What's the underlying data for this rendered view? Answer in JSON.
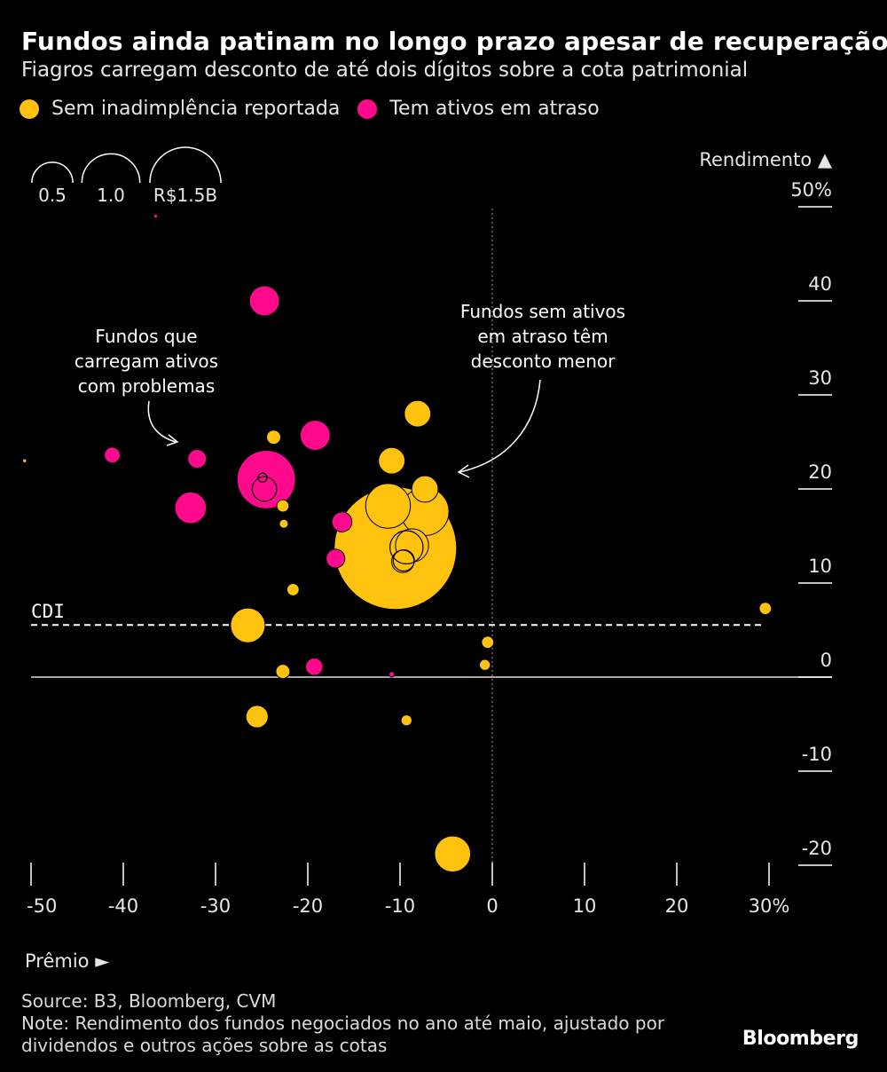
{
  "header": {
    "title": "Fundos ainda patinam no longo prazo apesar de recuperação",
    "subtitle": "Fiagros carregam desconto de até dois dígitos sobre a cota patrimonial"
  },
  "legend": {
    "items": [
      {
        "label": "Sem inadimplência reportada",
        "color": "#FFC20E"
      },
      {
        "label": "Tem ativos em atraso",
        "color": "#FF0A8C"
      }
    ]
  },
  "size_legend": {
    "labels": [
      "0.5",
      "1.0",
      "R$1.5B"
    ],
    "values": [
      0.5,
      1.0,
      1.5
    ]
  },
  "chart_data": {
    "type": "scatter",
    "title": "Fundos ainda patinam no longo prazo apesar de recuperação",
    "subtitle": "Fiagros carregam desconto de até dois dígitos sobre a cota patrimonial",
    "xlabel": "Prêmio ►",
    "ylabel": "Rendimento ▲",
    "xlim": [
      -50,
      30
    ],
    "ylim": [
      -20,
      50
    ],
    "x_ticks": [
      "-50",
      "-40",
      "-30",
      "-20",
      "-10",
      "0",
      "10",
      "20",
      "30%"
    ],
    "x_tick_values": [
      -50,
      -40,
      -30,
      -20,
      -10,
      0,
      10,
      20,
      30
    ],
    "y_ticks": [
      "50%",
      "40",
      "30",
      "20",
      "10",
      "0",
      "-10",
      "-20"
    ],
    "y_tick_values": [
      50,
      40,
      30,
      20,
      10,
      0,
      -10,
      -20
    ],
    "size_unit": "R$ bilhões (patrimônio)",
    "reference_line": {
      "label": "CDI",
      "y": 5.5
    },
    "series": [
      {
        "name": "Sem inadimplência reportada",
        "color": "#FFC20E",
        "points": [
          {
            "x": -10.5,
            "y": 13.7,
            "size": 1.5
          },
          {
            "x": -11.3,
            "y": 18.2,
            "size": 0.2
          },
          {
            "x": -7.3,
            "y": 17.6,
            "size": 0.23
          },
          {
            "x": -8.7,
            "y": 14.0,
            "size": 0.11
          },
          {
            "x": -9.7,
            "y": 12.3,
            "size": 0.05
          },
          {
            "x": -7.3,
            "y": 20.0,
            "size": 0.07
          },
          {
            "x": -10.9,
            "y": 23.0,
            "size": 0.07
          },
          {
            "x": -8.1,
            "y": 28.0,
            "size": 0.07
          },
          {
            "x": -4.3,
            "y": -18.8,
            "size": 0.13
          },
          {
            "x": -26.5,
            "y": 5.5,
            "size": 0.12
          },
          {
            "x": -25.5,
            "y": -4.2,
            "size": 0.05
          },
          {
            "x": -23.7,
            "y": 25.5,
            "size": 0.02
          },
          {
            "x": -22.7,
            "y": 18.2,
            "size": 0.015
          },
          {
            "x": -22.6,
            "y": 16.3,
            "size": 0.008
          },
          {
            "x": -21.6,
            "y": 9.3,
            "size": 0.015
          },
          {
            "x": -22.7,
            "y": 0.6,
            "size": 0.02
          },
          {
            "x": -9.3,
            "y": -4.6,
            "size": 0.012
          },
          {
            "x": -0.5,
            "y": 3.7,
            "size": 0.015
          },
          {
            "x": -0.8,
            "y": 1.3,
            "size": 0.012
          },
          {
            "x": 29.6,
            "y": 7.3,
            "size": 0.015
          },
          {
            "x": -50.7,
            "y": 23.0,
            "size": 0.001
          }
        ]
      },
      {
        "name": "Tem ativos em atraso",
        "color": "#FF0A8C",
        "points": [
          {
            "x": -24.5,
            "y": 21.0,
            "size": 0.34
          },
          {
            "x": -24.7,
            "y": 40.0,
            "size": 0.09
          },
          {
            "x": -19.2,
            "y": 25.7,
            "size": 0.09
          },
          {
            "x": -32.7,
            "y": 18.0,
            "size": 0.1
          },
          {
            "x": -32.0,
            "y": 23.2,
            "size": 0.035
          },
          {
            "x": -41.2,
            "y": 23.6,
            "size": 0.025
          },
          {
            "x": -16.3,
            "y": 16.5,
            "size": 0.04
          },
          {
            "x": -17.0,
            "y": 12.6,
            "size": 0.035
          },
          {
            "x": -19.3,
            "y": 1.1,
            "size": 0.03
          },
          {
            "x": -10.9,
            "y": 0.3,
            "size": 0.003
          },
          {
            "x": -36.5,
            "y": 49.0,
            "size": 0.001
          }
        ]
      }
    ],
    "nested_outlines": [
      {
        "x": -9.3,
        "y": 13.8,
        "size": 0.11
      },
      {
        "x": -9.6,
        "y": 12.4,
        "size": 0.045
      },
      {
        "x": -24.7,
        "y": 20.0,
        "size": 0.06
      },
      {
        "x": -24.9,
        "y": 21.2,
        "size": 0.008
      }
    ],
    "annotations": [
      {
        "lines": [
          "Fundos que",
          "carregam ativos",
          "com problemas"
        ]
      },
      {
        "lines": [
          "Fundos sem ativos",
          "em atraso têm",
          "desconto menor"
        ]
      }
    ]
  },
  "footer": {
    "source": "Source: B3, Bloomberg, CVM",
    "note_line1": "Note: Rendimento dos fundos negociados no ano até maio, ajustado por",
    "note_line2": "dividendos e outros ações sobre as cotas",
    "brand": "Bloomberg"
  }
}
